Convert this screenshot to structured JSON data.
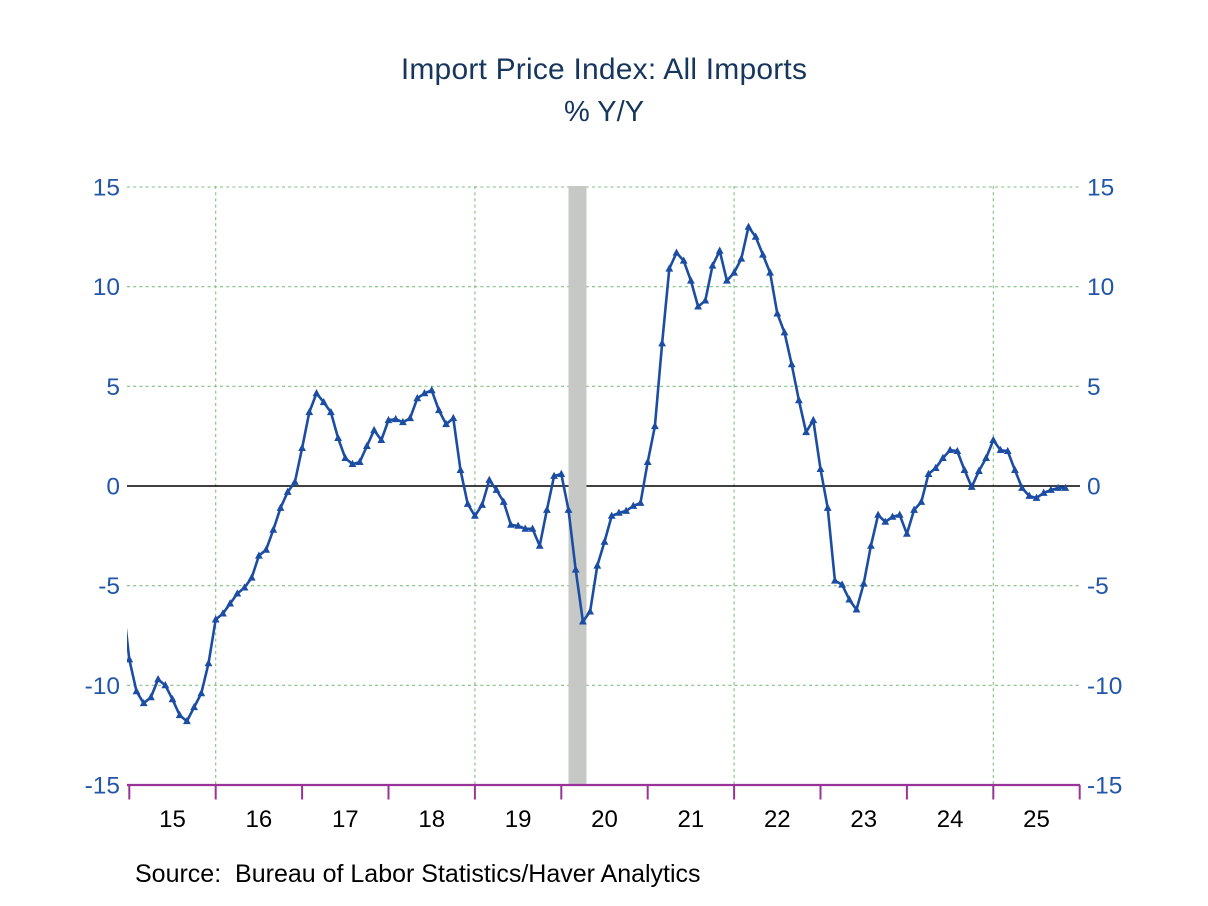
{
  "page": {
    "background": "#ffffff"
  },
  "chart_data": {
    "type": "line",
    "title": "Import Price Index: All Imports",
    "subtitle": "% Y/Y",
    "source_note": "Source:  Bureau of Labor Statistics/Haver Analytics",
    "grid": "dashed-green",
    "legend_position": "none",
    "y_axis": {
      "min": -15,
      "max": 15,
      "ticks": [
        15,
        10,
        5,
        0,
        -5,
        -10,
        -15
      ],
      "gridline_values": [
        15,
        10,
        5,
        -5,
        -10
      ],
      "label_color": "#2256A8",
      "labels_on_both_sides": true
    },
    "x_axis": {
      "tick_years": [
        "15",
        "16",
        "17",
        "18",
        "19",
        "20",
        "21",
        "22",
        "23",
        "24",
        "25"
      ],
      "gridline_years": [
        "16",
        "19",
        "22",
        "25"
      ],
      "axis_color": "#993399",
      "label_color": "#000000"
    },
    "gridline_color": "#80c080",
    "zero_line_color": "#000000",
    "recession_bar": {
      "color": "#c6c8c6",
      "start": "2020-02",
      "end": "2020-04"
    },
    "series": [
      {
        "name": "Import Price Index: All Imports, % Y/Y",
        "color": "#1B4DA3",
        "marker": "triangle-up",
        "frequency": "monthly",
        "start": "2014-12",
        "values": [
          -5.5,
          -8.7,
          -10.3,
          -10.9,
          -10.6,
          -9.7,
          -10.0,
          -10.7,
          -11.5,
          -11.8,
          -11.1,
          -10.4,
          -8.9,
          -6.7,
          -6.4,
          -5.9,
          -5.4,
          -5.1,
          -4.6,
          -3.5,
          -3.2,
          -2.2,
          -1.1,
          -0.3,
          0.2,
          1.9,
          3.7,
          4.65,
          4.2,
          3.7,
          2.4,
          1.4,
          1.1,
          1.2,
          2.0,
          2.8,
          2.3,
          3.3,
          3.35,
          3.2,
          3.4,
          4.4,
          4.65,
          4.8,
          3.8,
          3.1,
          3.4,
          0.8,
          -0.9,
          -1.5,
          -0.95,
          0.3,
          -0.2,
          -0.8,
          -1.95,
          -2.0,
          -2.15,
          -2.15,
          -3.0,
          -1.2,
          0.5,
          0.6,
          -1.2,
          -4.2,
          -6.8,
          -6.3,
          -4.0,
          -2.8,
          -1.5,
          -1.35,
          -1.25,
          -1.0,
          -0.85,
          1.2,
          3.0,
          7.15,
          10.9,
          11.7,
          11.3,
          10.3,
          9.0,
          9.3,
          11.05,
          11.8,
          10.3,
          10.7,
          11.4,
          13.0,
          12.5,
          11.6,
          10.7,
          8.65,
          7.7,
          6.1,
          4.3,
          2.7,
          3.3,
          0.85,
          -1.1,
          -4.75,
          -4.95,
          -5.7,
          -6.2,
          -4.9,
          -3.0,
          -1.45,
          -1.8,
          -1.55,
          -1.45,
          -2.4,
          -1.2,
          -0.8,
          0.6,
          0.9,
          1.4,
          1.8,
          1.75,
          0.8,
          -0.05,
          0.75,
          1.4,
          2.3,
          1.8,
          1.75,
          0.8,
          -0.1,
          -0.5,
          -0.6,
          -0.35,
          -0.2,
          -0.1,
          -0.1
        ]
      }
    ]
  }
}
